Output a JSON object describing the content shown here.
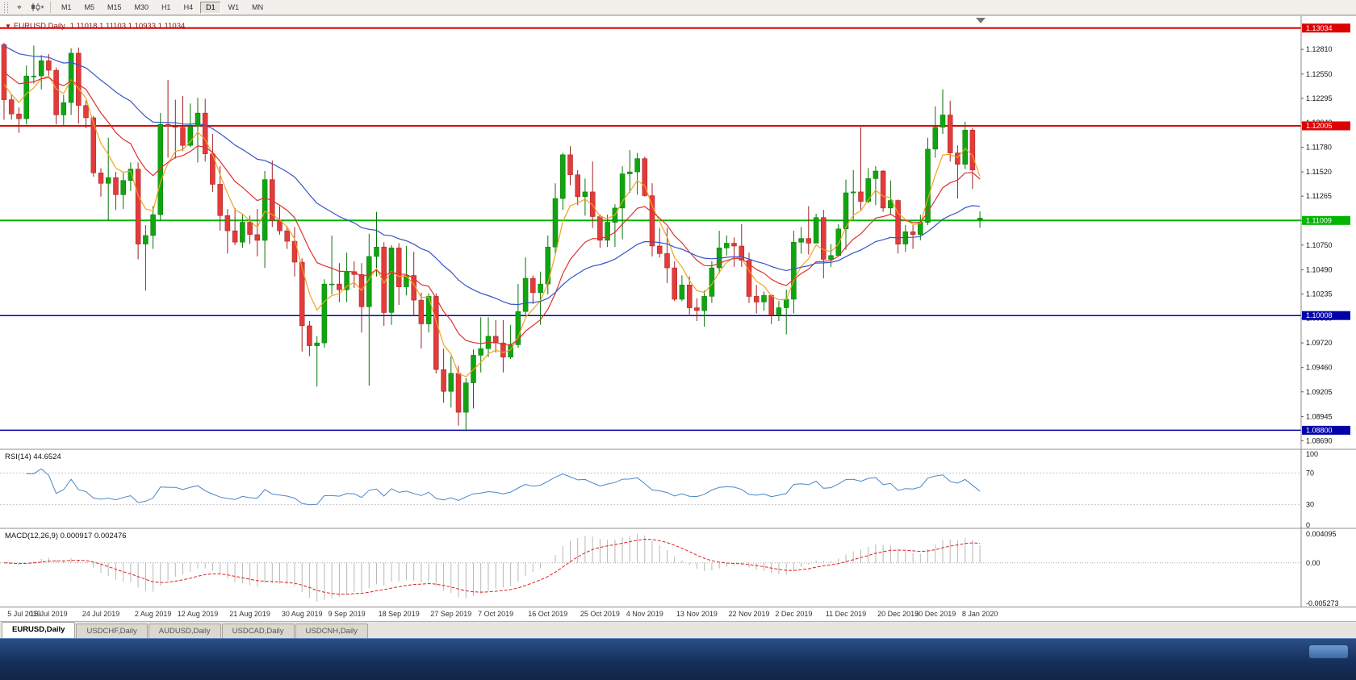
{
  "toolbar": {
    "timeframes": [
      "M1",
      "M5",
      "M15",
      "M30",
      "H1",
      "H4",
      "D1",
      "W1",
      "MN"
    ],
    "active_timeframe": "D1"
  },
  "chart": {
    "title": "EURUSD,Daily",
    "ohlc": "1.11018 1.11103 1.10933 1.11034"
  },
  "tabs": {
    "items": [
      {
        "label": "EURUSD,Daily",
        "active": true
      },
      {
        "label": "USDCHF,Daily",
        "active": false
      },
      {
        "label": "AUDUSD,Daily",
        "active": false
      },
      {
        "label": "USDCAD,Daily",
        "active": false
      },
      {
        "label": "USDCNH,Daily",
        "active": false
      }
    ]
  },
  "chart_data": {
    "type": "candlestick",
    "title": "EURUSD,Daily",
    "ohlc_label": {
      "open": "1.11018",
      "high": "1.11103",
      "low": "1.10933",
      "close": "1.11034"
    },
    "style": {
      "up_fill": "#10a510",
      "up_stroke": "#077507",
      "down_fill": "#e23b3b",
      "down_stroke": "#a21f1f"
    },
    "y_axis": {
      "max": 1.1316,
      "min": 1.086,
      "ticks": [
        1.1281,
        1.1255,
        1.12295,
        1.1204,
        1.1178,
        1.1152,
        1.11265,
        1.11005,
        1.1075,
        1.1049,
        1.10235,
        1.0998,
        1.0972,
        1.0946,
        1.09205,
        1.08945,
        1.0869
      ]
    },
    "hlines": [
      {
        "price": 1.13034,
        "color": "#dd0000",
        "width": 2
      },
      {
        "price": 1.12005,
        "color": "#dd0000",
        "width": 2
      },
      {
        "price": 1.11009,
        "color": "#00b400",
        "width": 2
      },
      {
        "price": 1.10008,
        "color": "#0000a8",
        "width": 1.5
      },
      {
        "price": 1.088,
        "color": "#0000a8",
        "width": 1.5
      }
    ],
    "moving_averages": [
      {
        "name": "fast-orange",
        "color": "#efa320",
        "period": 5,
        "seed": 1.1252
      },
      {
        "name": "medium-red",
        "color": "#e03030",
        "period": 13,
        "seed": 1.1262
      },
      {
        "name": "slow-blue",
        "color": "#3555c8",
        "period": 34,
        "seed": 1.1288
      }
    ],
    "x_labels": [
      {
        "label": "5 Jul 2019",
        "index": 0
      },
      {
        "label": "15 Jul 2019",
        "index": 6
      },
      {
        "label": "24 Jul 2019",
        "index": 13
      },
      {
        "label": "2 Aug 2019",
        "index": 20
      },
      {
        "label": "12 Aug 2019",
        "index": 26
      },
      {
        "label": "21 Aug 2019",
        "index": 33
      },
      {
        "label": "30 Aug 2019",
        "index": 40
      },
      {
        "label": "9 Sep 2019",
        "index": 46
      },
      {
        "label": "18 Sep 2019",
        "index": 53
      },
      {
        "label": "27 Sep 2019",
        "index": 60
      },
      {
        "label": "7 Oct 2019",
        "index": 66
      },
      {
        "label": "16 Oct 2019",
        "index": 73
      },
      {
        "label": "25 Oct 2019",
        "index": 80
      },
      {
        "label": "4 Nov 2019",
        "index": 86
      },
      {
        "label": "13 Nov 2019",
        "index": 93
      },
      {
        "label": "22 Nov 2019",
        "index": 100
      },
      {
        "label": "2 Dec 2019",
        "index": 106
      },
      {
        "label": "11 Dec 2019",
        "index": 113
      },
      {
        "label": "20 Dec 2019",
        "index": 120
      },
      {
        "label": "30 Dec 2019",
        "index": 125
      },
      {
        "label": "8 Jan 2020",
        "index": 131
      }
    ],
    "candles": [
      [
        1.1286,
        1.1288,
        1.1207,
        1.1228
      ],
      [
        1.1228,
        1.1234,
        1.1207,
        1.1213
      ],
      [
        1.1213,
        1.122,
        1.1193,
        1.1208
      ],
      [
        1.1208,
        1.1264,
        1.1202,
        1.1253
      ],
      [
        1.1253,
        1.1285,
        1.1245,
        1.1253
      ],
      [
        1.1253,
        1.1275,
        1.1239,
        1.1269
      ],
      [
        1.1269,
        1.1276,
        1.1253,
        1.1259
      ],
      [
        1.1259,
        1.1262,
        1.1202,
        1.1212
      ],
      [
        1.1212,
        1.1233,
        1.12,
        1.1225
      ],
      [
        1.1225,
        1.1282,
        1.1212,
        1.1277
      ],
      [
        1.1277,
        1.1283,
        1.1203,
        1.1222
      ],
      [
        1.1222,
        1.1227,
        1.1198,
        1.1209
      ],
      [
        1.1209,
        1.1211,
        1.1147,
        1.1151
      ],
      [
        1.1151,
        1.1156,
        1.1126,
        1.114
      ],
      [
        1.114,
        1.1188,
        1.1101,
        1.1146
      ],
      [
        1.1146,
        1.1152,
        1.1112,
        1.1128
      ],
      [
        1.1128,
        1.1151,
        1.1113,
        1.1143
      ],
      [
        1.1143,
        1.1162,
        1.1132,
        1.1155
      ],
      [
        1.1155,
        1.1162,
        1.106,
        1.1076
      ],
      [
        1.1076,
        1.1096,
        1.1027,
        1.1085
      ],
      [
        1.1085,
        1.1116,
        1.1071,
        1.1107
      ],
      [
        1.1107,
        1.1214,
        1.1101,
        1.1202
      ],
      [
        1.1202,
        1.1249,
        1.1167,
        1.12
      ],
      [
        1.12,
        1.1228,
        1.1166,
        1.1199
      ],
      [
        1.1199,
        1.1232,
        1.1174,
        1.118
      ],
      [
        1.118,
        1.1224,
        1.1178,
        1.12
      ],
      [
        1.12,
        1.123,
        1.1162,
        1.1214
      ],
      [
        1.1214,
        1.1229,
        1.1163,
        1.1171
      ],
      [
        1.1171,
        1.1192,
        1.1131,
        1.1139
      ],
      [
        1.1139,
        1.1158,
        1.109,
        1.1106
      ],
      [
        1.1106,
        1.1113,
        1.1066,
        1.109
      ],
      [
        1.109,
        1.1114,
        1.1075,
        1.1078
      ],
      [
        1.1078,
        1.1107,
        1.1072,
        1.1099
      ],
      [
        1.1099,
        1.1106,
        1.1076,
        1.1086
      ],
      [
        1.1086,
        1.1113,
        1.1063,
        1.108
      ],
      [
        1.108,
        1.1153,
        1.1051,
        1.1144
      ],
      [
        1.1144,
        1.1164,
        1.1094,
        1.1101
      ],
      [
        1.1101,
        1.1116,
        1.1086,
        1.109
      ],
      [
        1.109,
        1.1095,
        1.1071,
        1.1079
      ],
      [
        1.1079,
        1.1094,
        1.1042,
        1.1057
      ],
      [
        1.1057,
        1.1061,
        1.0963,
        1.099
      ],
      [
        1.099,
        1.0995,
        1.0958,
        1.0969
      ],
      [
        1.0969,
        1.0979,
        1.0926,
        1.0972
      ],
      [
        1.0972,
        1.1039,
        1.0967,
        1.1034
      ],
      [
        1.1034,
        1.1085,
        1.1023,
        1.1034
      ],
      [
        1.1034,
        1.1056,
        1.1015,
        1.1028
      ],
      [
        1.1028,
        1.1067,
        1.1015,
        1.1047
      ],
      [
        1.1047,
        1.1058,
        1.103,
        1.1044
      ],
      [
        1.1044,
        1.1056,
        1.0983,
        1.101
      ],
      [
        1.101,
        1.1087,
        1.0927,
        1.1063
      ],
      [
        1.1063,
        1.111,
        1.1042,
        1.1073
      ],
      [
        1.1073,
        1.1078,
        1.099,
        1.1004
      ],
      [
        1.1004,
        1.1075,
        1.0991,
        1.1072
      ],
      [
        1.1072,
        1.1077,
        1.1012,
        1.1031
      ],
      [
        1.1031,
        1.1074,
        1.1022,
        1.1043
      ],
      [
        1.1043,
        1.1068,
        1.1,
        1.1017
      ],
      [
        1.1017,
        1.1025,
        1.0966,
        1.0992
      ],
      [
        1.0992,
        1.1024,
        1.0983,
        1.1021
      ],
      [
        1.1021,
        1.1024,
        1.094,
        1.0944
      ],
      [
        1.0944,
        1.0966,
        1.0909,
        1.0921
      ],
      [
        1.0921,
        1.0958,
        1.0904,
        1.094
      ],
      [
        1.094,
        1.0948,
        1.0885,
        1.0899
      ],
      [
        1.0899,
        1.0935,
        1.0879,
        1.093
      ],
      [
        1.093,
        1.0965,
        1.0903,
        1.0959
      ],
      [
        1.0959,
        1.0999,
        1.0941,
        1.0966
      ],
      [
        1.0966,
        1.0999,
        1.0957,
        1.0979
      ],
      [
        1.0979,
        1.0996,
        1.0962,
        1.0972
      ],
      [
        1.0972,
        1.0996,
        1.0941,
        1.0957
      ],
      [
        1.0957,
        1.0991,
        1.0955,
        1.097
      ],
      [
        1.097,
        1.1034,
        1.0967,
        1.1005
      ],
      [
        1.1005,
        1.1062,
        1.1002,
        1.104
      ],
      [
        1.104,
        1.1043,
        1.1013,
        1.1025
      ],
      [
        1.1025,
        1.1047,
        1.0991,
        1.1034
      ],
      [
        1.1034,
        1.1085,
        1.1023,
        1.1073
      ],
      [
        1.1073,
        1.114,
        1.1066,
        1.1124
      ],
      [
        1.1124,
        1.1172,
        1.1112,
        1.117
      ],
      [
        1.117,
        1.1179,
        1.1138,
        1.1149
      ],
      [
        1.1149,
        1.1154,
        1.1117,
        1.1126
      ],
      [
        1.1126,
        1.1145,
        1.1106,
        1.1131
      ],
      [
        1.1131,
        1.1163,
        1.1093,
        1.1105
      ],
      [
        1.1105,
        1.1107,
        1.1072,
        1.108
      ],
      [
        1.108,
        1.1107,
        1.1073,
        1.1099
      ],
      [
        1.1099,
        1.1118,
        1.1073,
        1.1114
      ],
      [
        1.1114,
        1.1158,
        1.1081,
        1.115
      ],
      [
        1.115,
        1.1175,
        1.113,
        1.1152
      ],
      [
        1.1152,
        1.1172,
        1.1128,
        1.1166
      ],
      [
        1.1166,
        1.1168,
        1.1126,
        1.1127
      ],
      [
        1.1127,
        1.114,
        1.1063,
        1.1074
      ],
      [
        1.1074,
        1.1093,
        1.1062,
        1.1066
      ],
      [
        1.1066,
        1.1093,
        1.1035,
        1.1051
      ],
      [
        1.1051,
        1.1058,
        1.1016,
        1.1018
      ],
      [
        1.1018,
        1.1043,
        1.1016,
        1.1033
      ],
      [
        1.1033,
        1.1042,
        1.1002,
        1.1009
      ],
      [
        1.1009,
        1.1019,
        1.0995,
        1.1006
      ],
      [
        1.1006,
        1.1027,
        1.0989,
        1.1021
      ],
      [
        1.1021,
        1.1058,
        1.1014,
        1.1051
      ],
      [
        1.1051,
        1.109,
        1.1045,
        1.1072
      ],
      [
        1.1072,
        1.1085,
        1.1064,
        1.1077
      ],
      [
        1.1077,
        1.1083,
        1.1052,
        1.1074
      ],
      [
        1.1074,
        1.1097,
        1.1052,
        1.1059
      ],
      [
        1.1059,
        1.1067,
        1.1014,
        1.1021
      ],
      [
        1.1021,
        1.1033,
        1.1003,
        1.1015
      ],
      [
        1.1015,
        1.1026,
        1.1006,
        1.1022
      ],
      [
        1.1022,
        1.1023,
        1.0992,
        1.1001
      ],
      [
        1.1001,
        1.1016,
        1.0995,
        1.1009
      ],
      [
        1.1009,
        1.1028,
        1.0981,
        1.1018
      ],
      [
        1.1018,
        1.109,
        1.1003,
        1.1078
      ],
      [
        1.1078,
        1.1094,
        1.1066,
        1.1082
      ],
      [
        1.1082,
        1.1116,
        1.1065,
        1.1077
      ],
      [
        1.1077,
        1.1108,
        1.1077,
        1.1104
      ],
      [
        1.1104,
        1.1112,
        1.104,
        1.106
      ],
      [
        1.106,
        1.1076,
        1.1052,
        1.1064
      ],
      [
        1.1064,
        1.1097,
        1.1063,
        1.1092
      ],
      [
        1.1092,
        1.1144,
        1.107,
        1.113
      ],
      [
        1.113,
        1.1154,
        1.1102,
        1.1131
      ],
      [
        1.1131,
        1.1199,
        1.1112,
        1.1121
      ],
      [
        1.1121,
        1.1156,
        1.1119,
        1.1145
      ],
      [
        1.1145,
        1.1158,
        1.1117,
        1.1153
      ],
      [
        1.1153,
        1.1154,
        1.111,
        1.1114
      ],
      [
        1.1114,
        1.1143,
        1.1107,
        1.1122
      ],
      [
        1.1122,
        1.1123,
        1.1066,
        1.1076
      ],
      [
        1.1076,
        1.1096,
        1.1068,
        1.1089
      ],
      [
        1.1089,
        1.1096,
        1.1071,
        1.1086
      ],
      [
        1.1086,
        1.1107,
        1.108,
        1.1099
      ],
      [
        1.1099,
        1.1188,
        1.1096,
        1.1176
      ],
      [
        1.1176,
        1.1221,
        1.1167,
        1.1199
      ],
      [
        1.1199,
        1.1239,
        1.1192,
        1.1212
      ],
      [
        1.1212,
        1.1227,
        1.1163,
        1.1172
      ],
      [
        1.1172,
        1.118,
        1.1124,
        1.116
      ],
      [
        1.116,
        1.1205,
        1.1155,
        1.1196
      ],
      [
        1.1196,
        1.1198,
        1.1134,
        1.1154
      ],
      [
        1.11018,
        1.11103,
        1.10933,
        1.11034
      ]
    ],
    "indicators": {
      "rsi": {
        "label": "RSI(14) 44.6524",
        "period": 14,
        "color": "#4a86c8",
        "range": [
          0,
          100
        ],
        "levels": [
          100,
          70,
          30,
          0
        ],
        "guides": [
          70,
          30
        ]
      },
      "macd": {
        "label": "MACD(12,26,9) 0.000917 0.002476",
        "fast": 12,
        "slow": 26,
        "signal": 9,
        "range": [
          -0.005273,
          0.004095
        ],
        "axis_labels": [
          "0.004095",
          "0.00",
          "-0.005273"
        ],
        "histogram_color": "#b8b8b8",
        "signal_color": "#dd2222"
      }
    }
  }
}
